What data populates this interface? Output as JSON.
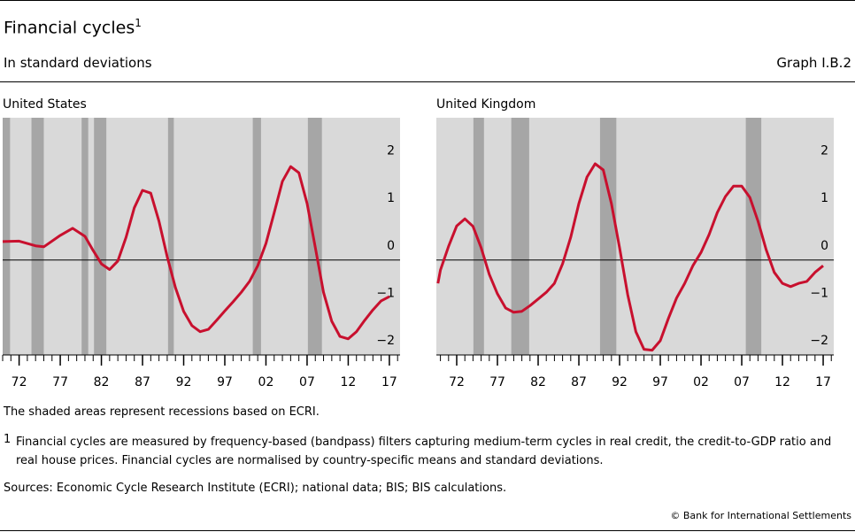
{
  "header": {
    "title": "Financial cycles",
    "title_note": "1",
    "subtitle": "In standard deviations",
    "graph_id": "Graph I.B.2"
  },
  "chart_data": [
    {
      "type": "line",
      "title": "United States",
      "color": "#c8102e",
      "zero_line": true,
      "x": [
        1970,
        1972,
        1974,
        1975,
        1977,
        1978.5,
        1980,
        1981,
        1982,
        1983,
        1984,
        1985,
        1986,
        1987,
        1988,
        1989,
        1990,
        1991,
        1992,
        1993,
        1994,
        1995,
        1996,
        1997,
        1998,
        1999,
        2000,
        2001,
        2002,
        2003,
        2004,
        2005,
        2006,
        2007,
        2008,
        2009,
        2010,
        2011,
        2012,
        2013,
        2014,
        2015,
        2016,
        2017
      ],
      "values": [
        0.39,
        0.4,
        0.3,
        0.28,
        0.52,
        0.67,
        0.5,
        0.2,
        -0.08,
        -0.2,
        -0.02,
        0.48,
        1.1,
        1.47,
        1.41,
        0.82,
        0.07,
        -0.58,
        -1.08,
        -1.38,
        -1.51,
        -1.46,
        -1.27,
        -1.07,
        -0.88,
        -0.68,
        -0.45,
        -0.12,
        0.35,
        1.0,
        1.66,
        1.97,
        1.84,
        1.19,
        0.26,
        -0.68,
        -1.29,
        -1.61,
        -1.66,
        -1.51,
        -1.27,
        -1.05,
        -0.86,
        -0.77
      ],
      "shaded": [
        {
          "start": 1969.9,
          "end": 1970.9
        },
        {
          "start": 1973.5,
          "end": 1975.0
        },
        {
          "start": 1979.6,
          "end": 1980.4
        },
        {
          "start": 1981.1,
          "end": 1982.6
        },
        {
          "start": 1990.1,
          "end": 1990.8
        },
        {
          "start": 2000.4,
          "end": 2001.4
        },
        {
          "start": 2007.1,
          "end": 2008.8
        }
      ],
      "xlim": [
        1970,
        2018.3
      ],
      "ylim": [
        -2,
        3
      ],
      "xticks": [
        {
          "value": 1972,
          "label": "72"
        },
        {
          "value": 1977,
          "label": "77"
        },
        {
          "value": 1982,
          "label": "82"
        },
        {
          "value": 1987,
          "label": "87"
        },
        {
          "value": 1992,
          "label": "92"
        },
        {
          "value": 1997,
          "label": "97"
        },
        {
          "value": 2002,
          "label": "02"
        },
        {
          "value": 2007,
          "label": "07"
        },
        {
          "value": 2012,
          "label": "12"
        },
        {
          "value": 2017,
          "label": "17"
        }
      ],
      "x_minor_ticks": [
        1970,
        1971,
        1972,
        1973,
        1974,
        1975,
        1976,
        1977,
        1978,
        1979,
        1980,
        1981,
        1982,
        1983,
        1984,
        1985,
        1986,
        1987,
        1988,
        1989,
        1990,
        1991,
        1992,
        1993,
        1994,
        1995,
        1996,
        1997,
        1998,
        1999,
        2000,
        2001,
        2002,
        2003,
        2004,
        2005,
        2006,
        2007,
        2008,
        2009,
        2010,
        2011,
        2012,
        2013,
        2014,
        2015,
        2016,
        2017,
        2018
      ],
      "yticks": [
        2,
        1,
        0,
        {
          "value": -1,
          "label": "−1"
        },
        {
          "value": -2,
          "label": "−2"
        }
      ]
    },
    {
      "type": "line",
      "title": "United Kingdom",
      "color": "#c8102e",
      "zero_line": true,
      "x": [
        1969.7,
        1970,
        1971,
        1972,
        1973,
        1974,
        1975,
        1976,
        1977,
        1978,
        1979,
        1980,
        1981,
        1982,
        1983,
        1984,
        1985,
        1986,
        1987,
        1988,
        1989,
        1990,
        1991,
        1992,
        1993,
        1994,
        1995,
        1996,
        1997,
        1998,
        1999,
        2000,
        2001,
        2002,
        2003,
        2004,
        2005,
        2006,
        2007,
        2008,
        2009,
        2010,
        2011,
        2012,
        2013,
        2014,
        2015,
        2016,
        2017
      ],
      "values": [
        -0.49,
        -0.21,
        0.29,
        0.72,
        0.87,
        0.71,
        0.26,
        -0.3,
        -0.71,
        -1.01,
        -1.1,
        -1.08,
        -0.96,
        -0.82,
        -0.68,
        -0.49,
        -0.08,
        0.48,
        1.19,
        1.75,
        2.03,
        1.9,
        1.19,
        0.26,
        -0.73,
        -1.51,
        -1.88,
        -1.9,
        -1.7,
        -1.23,
        -0.8,
        -0.49,
        -0.12,
        0.16,
        0.54,
        1.0,
        1.34,
        1.56,
        1.56,
        1.32,
        0.82,
        0.22,
        -0.26,
        -0.49,
        -0.56,
        -0.49,
        -0.45,
        -0.26,
        -0.12
      ],
      "shaded": [
        {
          "start": 1974.05,
          "end": 1975.35
        },
        {
          "start": 1978.7,
          "end": 1980.9
        },
        {
          "start": 1989.6,
          "end": 1991.6
        },
        {
          "start": 2007.5,
          "end": 2009.4
        }
      ],
      "xlim": [
        1969.5,
        2018.3
      ],
      "ylim": [
        -2,
        3
      ],
      "xticks": [
        {
          "value": 1972,
          "label": "72"
        },
        {
          "value": 1977,
          "label": "77"
        },
        {
          "value": 1982,
          "label": "82"
        },
        {
          "value": 1987,
          "label": "87"
        },
        {
          "value": 1992,
          "label": "92"
        },
        {
          "value": 1997,
          "label": "97"
        },
        {
          "value": 2002,
          "label": "02"
        },
        {
          "value": 2007,
          "label": "07"
        },
        {
          "value": 2012,
          "label": "12"
        },
        {
          "value": 2017,
          "label": "17"
        }
      ],
      "x_minor_ticks": [
        1970,
        1971,
        1972,
        1973,
        1974,
        1975,
        1976,
        1977,
        1978,
        1979,
        1980,
        1981,
        1982,
        1983,
        1984,
        1985,
        1986,
        1987,
        1988,
        1989,
        1990,
        1991,
        1992,
        1993,
        1994,
        1995,
        1996,
        1997,
        1998,
        1999,
        2000,
        2001,
        2002,
        2003,
        2004,
        2005,
        2006,
        2007,
        2008,
        2009,
        2010,
        2011,
        2012,
        2013,
        2014,
        2015,
        2016,
        2017,
        2018
      ],
      "yticks": [
        2,
        1,
        0,
        {
          "value": -1,
          "label": "−1"
        },
        {
          "value": -2,
          "label": "−2"
        }
      ]
    }
  ],
  "notes": {
    "shading": "The shaded areas represent recessions based on ECRI.",
    "footnote_marker": "1",
    "footnote": "Financial cycles are measured by frequency-based (bandpass) filters capturing medium-term cycles in real credit, the credit-to-GDP ratio and real house prices. Financial cycles are normalised by country-specific means and standard deviations.",
    "sources": "Sources: Economic Cycle Research Institute (ECRI); national data; BIS; BIS calculations.",
    "copyright": "© Bank for International Settlements"
  }
}
